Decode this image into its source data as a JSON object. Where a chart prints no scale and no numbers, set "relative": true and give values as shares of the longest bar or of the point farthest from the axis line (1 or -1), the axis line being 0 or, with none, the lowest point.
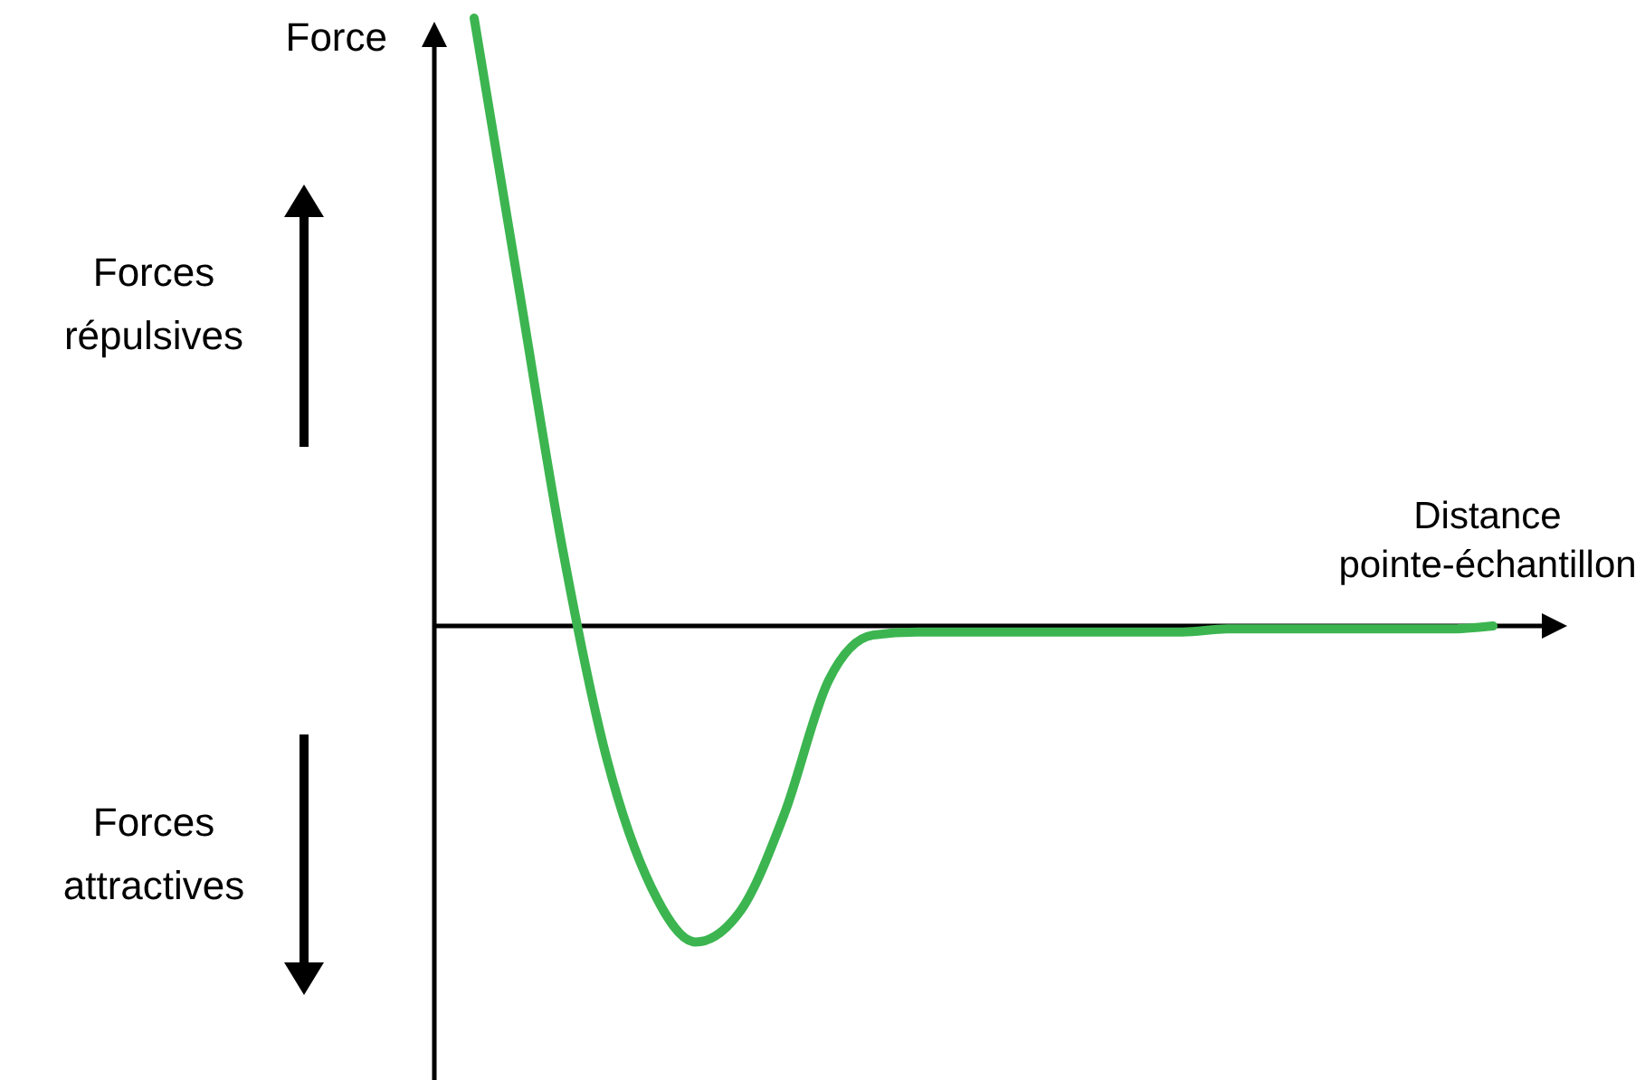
{
  "chart_data": {
    "type": "line",
    "relative": true,
    "ylabel": "Force",
    "xlabel": "Distance pointe-échantillon",
    "annotations": [
      "Forces répulsives",
      "Forces attractives"
    ],
    "categories": [
      null,
      null,
      null,
      null,
      null,
      null,
      null,
      null,
      null,
      null,
      null,
      null,
      null,
      null,
      null,
      null,
      null,
      null,
      null,
      null,
      null,
      null,
      null,
      null
    ],
    "series": [
      {
        "color": "#3cb550",
        "values": [
          1.0,
          0.56,
          0.125,
          -0.22,
          -0.43,
          -0.52,
          -0.47,
          -0.31,
          -0.09,
          -0.015,
          -0.01,
          -0.01,
          -0.01,
          -0.01,
          -0.01,
          -0.01,
          -0.01,
          -0.005,
          -0.005,
          -0.005,
          -0.005,
          -0.005,
          -0.005,
          0
        ]
      }
    ]
  }
}
